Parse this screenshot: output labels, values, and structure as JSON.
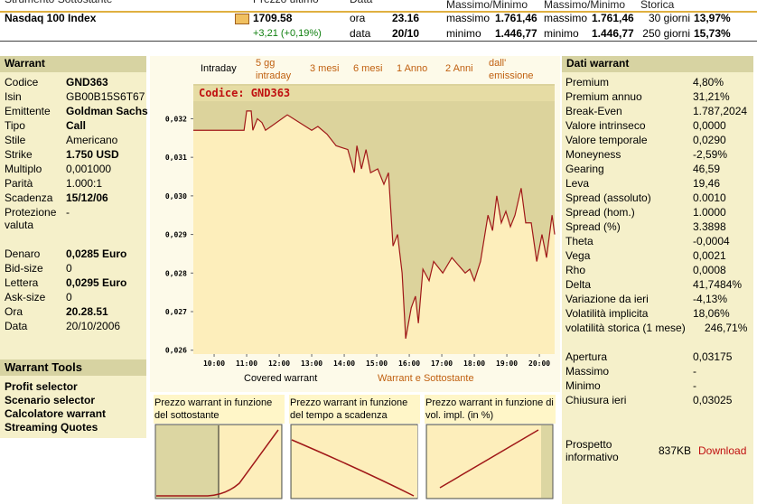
{
  "header": {
    "columns": [
      "Strumento Sottostante",
      "Prezzo ultimo",
      "Data",
      "Massimo/Minimo",
      "Massimo/Minimo",
      "Storica"
    ],
    "instrument": "Nasdaq 100 Index",
    "last_price": "1709.58",
    "change": "+3,21 (+0,19%)",
    "time_label": "ora",
    "time": "23.16",
    "date_label": "data",
    "date": "20/10",
    "range1": [
      {
        "label": "massimo",
        "value": "1.761,46"
      },
      {
        "label": "minimo",
        "value": "1.446,77"
      }
    ],
    "range2": [
      {
        "label": "massimo",
        "value": "1.761,46"
      },
      {
        "label": "minimo",
        "value": "1.446,77"
      }
    ],
    "volatility": [
      {
        "label": "30 giorni",
        "value": "13,97%"
      },
      {
        "label": "250 giorni",
        "value": "15,73%"
      }
    ]
  },
  "warrant": {
    "title": "Warrant",
    "rows": [
      {
        "label": "Codice",
        "value": "GND363",
        "bold": true
      },
      {
        "label": "Isin",
        "value": "GB00B15S6T67"
      },
      {
        "label": "Emittente",
        "value": "Goldman Sachs",
        "bold": true
      },
      {
        "label": "Tipo",
        "value": "Call",
        "bold": true
      },
      {
        "label": "Stile",
        "value": "Americano"
      },
      {
        "label": "Strike",
        "value": "1.750 USD",
        "bold": true
      },
      {
        "label": "Multiplo",
        "value": "0,001000"
      },
      {
        "label": "Parità",
        "value": "1.000:1"
      },
      {
        "label": "Scadenza",
        "value": "15/12/06",
        "bold": true
      },
      {
        "label": "Protezione valuta",
        "value": "-"
      },
      {
        "label": "Denaro",
        "value": "0,0285 Euro",
        "bold": true
      },
      {
        "label": "Bid-size",
        "value": "0"
      },
      {
        "label": "Lettera",
        "value": "0,0295 Euro",
        "bold": true
      },
      {
        "label": "Ask-size",
        "value": "0"
      },
      {
        "label": "Ora",
        "value": "20.28.51",
        "bold": true
      },
      {
        "label": "Data",
        "value": "20/10/2006"
      }
    ]
  },
  "tools": {
    "title": "Warrant Tools",
    "items": [
      "Profit selector",
      "Scenario selector",
      "Calcolatore warrant",
      "Streaming Quotes"
    ]
  },
  "tabs": [
    "Intraday",
    "5 gg intraday",
    "3 mesi",
    "6 mesi",
    "1 Anno",
    "2 Anni",
    "dall' emissione"
  ],
  "chart_data": {
    "type": "line",
    "title": "Codice: GND363",
    "x": [
      9.36,
      10.92,
      11.0,
      11.14,
      11.19,
      11.33,
      11.47,
      11.58,
      11.75,
      12.25,
      13.0,
      13.19,
      13.47,
      13.75,
      14.11,
      14.31,
      14.39,
      14.53,
      14.67,
      14.81,
      15.03,
      15.22,
      15.36,
      15.5,
      15.64,
      15.78,
      15.89,
      16.06,
      16.19,
      16.28,
      16.42,
      16.61,
      16.75,
      17.03,
      17.31,
      17.72,
      17.86,
      18.0,
      18.19,
      18.42,
      18.56,
      18.69,
      18.83,
      18.97,
      19.11,
      19.25,
      19.44,
      19.58,
      19.75,
      19.92,
      20.08,
      20.22,
      20.39,
      20.47
    ],
    "series": [
      {
        "color": "#a01818",
        "values": [
          0.0317,
          0.0317,
          0.0322,
          0.0322,
          0.0317,
          0.032,
          0.0319,
          0.0317,
          0.0318,
          0.0321,
          0.0317,
          0.0318,
          0.0316,
          0.0313,
          0.0312,
          0.0306,
          0.0313,
          0.0307,
          0.0312,
          0.0306,
          0.0307,
          0.0303,
          0.0306,
          0.0287,
          0.029,
          0.028,
          0.0263,
          0.0271,
          0.0274,
          0.0267,
          0.0281,
          0.0278,
          0.0283,
          0.028,
          0.0284,
          0.028,
          0.0281,
          0.0278,
          0.0283,
          0.0295,
          0.0291,
          0.03,
          0.0293,
          0.0296,
          0.0292,
          0.0295,
          0.0302,
          0.0293,
          0.0293,
          0.0283,
          0.029,
          0.0284,
          0.0295,
          0.029
        ]
      }
    ],
    "xlim": [
      9.36,
      20.47
    ],
    "ylim": [
      0.0259,
      0.0329
    ],
    "xticks": [
      {
        "value": 10,
        "label": "10:00"
      },
      {
        "value": 11,
        "label": "11:00"
      },
      {
        "value": 12,
        "label": "12:00"
      },
      {
        "value": 13,
        "label": "13:00"
      },
      {
        "value": 14,
        "label": "14:00"
      },
      {
        "value": 15,
        "label": "15:00"
      },
      {
        "value": 16,
        "label": "16:00"
      },
      {
        "value": 17,
        "label": "17:00"
      },
      {
        "value": 18,
        "label": "18:00"
      },
      {
        "value": 19,
        "label": "19:00"
      },
      {
        "value": 20,
        "label": "20:00"
      }
    ],
    "yticks": [
      {
        "value": 0.032,
        "label": "0,032"
      },
      {
        "value": 0.031,
        "label": "0,031"
      },
      {
        "value": 0.03,
        "label": "0,030"
      },
      {
        "value": 0.029,
        "label": "0,029"
      },
      {
        "value": 0.028,
        "label": "0,028"
      },
      {
        "value": 0.027,
        "label": "0,027"
      },
      {
        "value": 0.026,
        "label": "0,026"
      }
    ]
  },
  "chart_links": [
    "Covered warrant",
    "Warrant e Sottostante"
  ],
  "mini_charts": [
    {
      "title": "Prezzo warrant in funzione del sottostante"
    },
    {
      "title": "Prezzo warrant in funzione del tempo a scadenza"
    },
    {
      "title": "Prezzo warrant in funzione di vol. impl. (in %)"
    }
  ],
  "dati": {
    "title": "Dati warrant",
    "rows": [
      {
        "label": "Premium",
        "value": "4,80%"
      },
      {
        "label": "Premium annuo",
        "value": "31,21%"
      },
      {
        "label": "Break-Even",
        "value": "1.787,2024"
      },
      {
        "label": "Valore intrinseco",
        "value": "0,0000"
      },
      {
        "label": "Valore temporale",
        "value": "0,0290"
      },
      {
        "label": "Moneyness",
        "value": "-2,59%"
      },
      {
        "label": "Gearing",
        "value": "46,59"
      },
      {
        "label": "Leva",
        "value": "19,46"
      },
      {
        "label": "Spread (assoluto)",
        "value": "0.0010"
      },
      {
        "label": "Spread (hom.)",
        "value": "1.0000"
      },
      {
        "label": "Spread (%)",
        "value": "3.3898"
      },
      {
        "label": "Theta",
        "value": "-0,0004"
      },
      {
        "label": "Vega",
        "value": "0,0021"
      },
      {
        "label": "Rho",
        "value": "0,0008"
      },
      {
        "label": "Delta",
        "value": "41,7484%"
      },
      {
        "label": "Variazione da ieri",
        "value": "-4,13%"
      },
      {
        "label": "Volatilità implicita",
        "value": "18,06%"
      },
      {
        "label": "volatilità storica (1 mese)",
        "value": "246,71%"
      }
    ],
    "rows2": [
      {
        "label": "Apertura",
        "value": "0,03175"
      },
      {
        "label": "Massimo",
        "value": "-"
      },
      {
        "label": "Minimo",
        "value": "-"
      },
      {
        "label": "Chiusura ieri",
        "value": "0,03025"
      }
    ]
  },
  "prospetto": {
    "label": "Prospetto informativo",
    "size": "837KB",
    "link": "Download"
  }
}
